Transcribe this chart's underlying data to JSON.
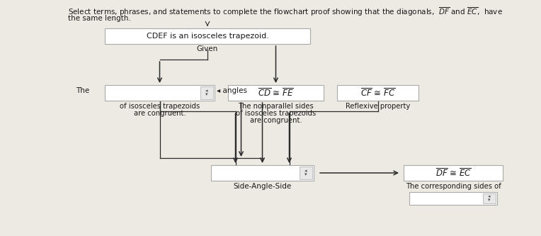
{
  "bg_color": "#edeae3",
  "arrow_color": "#2b2b2b",
  "box_border": "#aaaaaa",
  "box_fill": "#ffffff",
  "text_color": "#1a1a1a",
  "title_line1": "Select terms, phrases, and statements to complete the flowchart proof showing that the diagonals,  $\\overline{DF}$ and $\\overline{EC}$,  have",
  "title_line2": "the same length.",
  "box1_text": "CDEF is an isosceles trapezoid.",
  "box1_label": "Given",
  "box2_label_the": "The",
  "box2_label_angles": " angles",
  "box2_label2": "of isosceles trapezoids",
  "box2_label3": "are congruent.",
  "box3_text": "$\\overline{CD}$ ≅ $\\overline{FE}$",
  "box3_label1": "The nonparallel sides",
  "box3_label2": "of isosceles trapezoids",
  "box3_label3": "are congruent.",
  "box4_text": "$\\overline{CF}$ ≅ $\\overline{FC}$",
  "box4_label": "Reflexive property",
  "box5_label": "Side-Angle-Side",
  "box6_text": "$\\overline{DF}$ ≅ $\\overline{EC}$",
  "box6_label": "The corresponding sides of"
}
